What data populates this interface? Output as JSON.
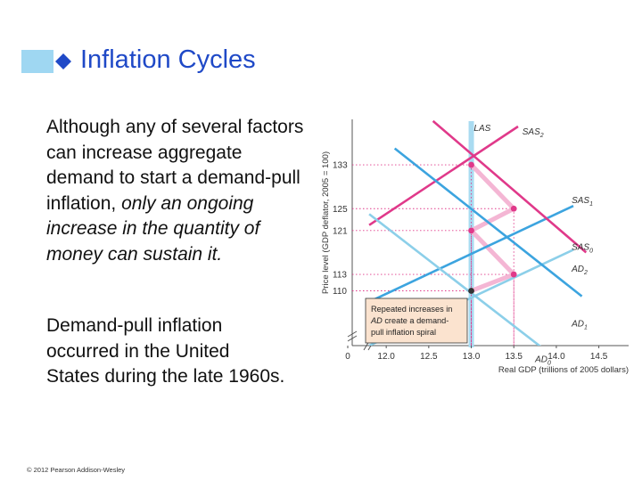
{
  "slide": {
    "title": "Inflation Cycles",
    "para1_normal": "Although any of several factors can increase aggregate demand to start a demand-pull inflation, ",
    "para1_italic": "only an ongoing increase in the quantity of money can sustain it.",
    "para2": "Demand-pull inflation occurred in the United States during the late 1960s.",
    "copyright": "© 2012 Pearson Addison-Wesley",
    "colors": {
      "title": "#1f49c7",
      "accent": "#9fd7f2"
    }
  },
  "chart_data": {
    "type": "line",
    "xlabel": "Real GDP (trillions of 2005 dollars)",
    "ylabel": "Price level (GDP deflator, 2005 = 100)",
    "x_ticks": [
      "0",
      "12.0",
      "12.5",
      "13.0",
      "13.5",
      "14.0",
      "14.5"
    ],
    "y_ticks": [
      "110",
      "113",
      "121",
      "125",
      "133"
    ],
    "xlim": [
      11.6,
      14.85
    ],
    "ylim": [
      100,
      140
    ],
    "axis_break": true,
    "series": [
      {
        "name": "LAS",
        "type": "vertical",
        "x": 13.0,
        "color": "#a9dbf1"
      },
      {
        "name": "SAS0",
        "points": [
          [
            11.8,
            100
          ],
          [
            14.2,
            117.5
          ]
        ],
        "color": "#8ccfe9"
      },
      {
        "name": "SAS1",
        "points": [
          [
            11.8,
            108
          ],
          [
            14.2,
            125.5
          ]
        ],
        "color": "#3ca4df"
      },
      {
        "name": "SAS2",
        "points": [
          [
            11.8,
            122
          ],
          [
            13.55,
            140
          ]
        ],
        "color": "#e0398a"
      },
      {
        "name": "AD0",
        "points": [
          [
            11.8,
            124
          ],
          [
            13.9,
            98.8
          ]
        ],
        "color": "#8ccfe9"
      },
      {
        "name": "AD1",
        "points": [
          [
            12.1,
            136
          ],
          [
            14.3,
            109
          ]
        ],
        "color": "#3ca4df"
      },
      {
        "name": "AD2",
        "points": [
          [
            12.55,
            141
          ],
          [
            14.35,
            117
          ]
        ],
        "color": "#e0398a"
      }
    ],
    "curve_labels": [
      {
        "name": "LAS",
        "text": "LAS",
        "sub": "",
        "x": 13.03,
        "y": 139.2
      },
      {
        "name": "SAS2",
        "text": "SAS",
        "sub": "2",
        "x": 13.6,
        "y": 138.5
      },
      {
        "name": "SAS1",
        "text": "SAS",
        "sub": "1",
        "x": 14.18,
        "y": 126
      },
      {
        "name": "SAS0",
        "text": "SAS",
        "sub": "0",
        "x": 14.18,
        "y": 117.5
      },
      {
        "name": "AD2",
        "text": "AD",
        "sub": "2",
        "x": 14.18,
        "y": 113.5
      },
      {
        "name": "AD1",
        "text": "AD",
        "sub": "1",
        "x": 14.18,
        "y": 103.5
      },
      {
        "name": "AD0",
        "text": "AD",
        "sub": "0",
        "x": 13.75,
        "y": 97
      }
    ],
    "equilibria": [
      {
        "x": 13.0,
        "y": 110,
        "color": "#333333"
      },
      {
        "x": 13.5,
        "y": 113,
        "color": "#e0398a"
      },
      {
        "x": 13.0,
        "y": 121,
        "color": "#e0398a"
      },
      {
        "x": 13.5,
        "y": 125,
        "color": "#e0398a"
      },
      {
        "x": 13.0,
        "y": 133,
        "color": "#e0398a"
      }
    ],
    "guides": [
      {
        "x": 13.0,
        "y": 133
      },
      {
        "x": 13.5,
        "y": 125
      },
      {
        "x": 13.0,
        "y": 121
      },
      {
        "x": 13.5,
        "y": 113
      },
      {
        "x": 13.0,
        "y": 110
      }
    ],
    "annotation": {
      "line1": "Repeated increases in",
      "line2_italic": "AD",
      "line2_rest": " create a demand-",
      "line3": "pull inflation spiral"
    }
  }
}
